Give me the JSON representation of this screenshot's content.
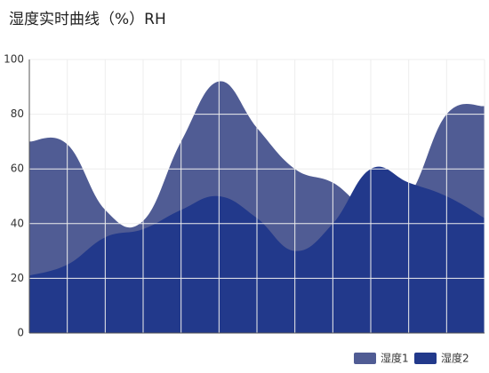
{
  "chart_data": {
    "type": "area",
    "title": "湿度实时曲线（%）RH",
    "categories": [
      null,
      null,
      null,
      null,
      null,
      null,
      null,
      null,
      null,
      null,
      null,
      null,
      null
    ],
    "series": [
      {
        "name": "湿度1",
        "color": "#505c94",
        "values": [
          70,
          69,
          45,
          41,
          70,
          92,
          75,
          60,
          55,
          45,
          50,
          80,
          83
        ]
      },
      {
        "name": "湿度2",
        "color": "#22398b",
        "values": [
          21,
          25,
          35,
          38,
          45,
          50,
          42,
          30,
          40,
          60,
          55,
          50,
          42
        ]
      }
    ],
    "ylim": [
      0,
      100
    ],
    "yticks": [
      0,
      20,
      40,
      60,
      80,
      100
    ],
    "grid": true,
    "legend": "bottom-right"
  }
}
